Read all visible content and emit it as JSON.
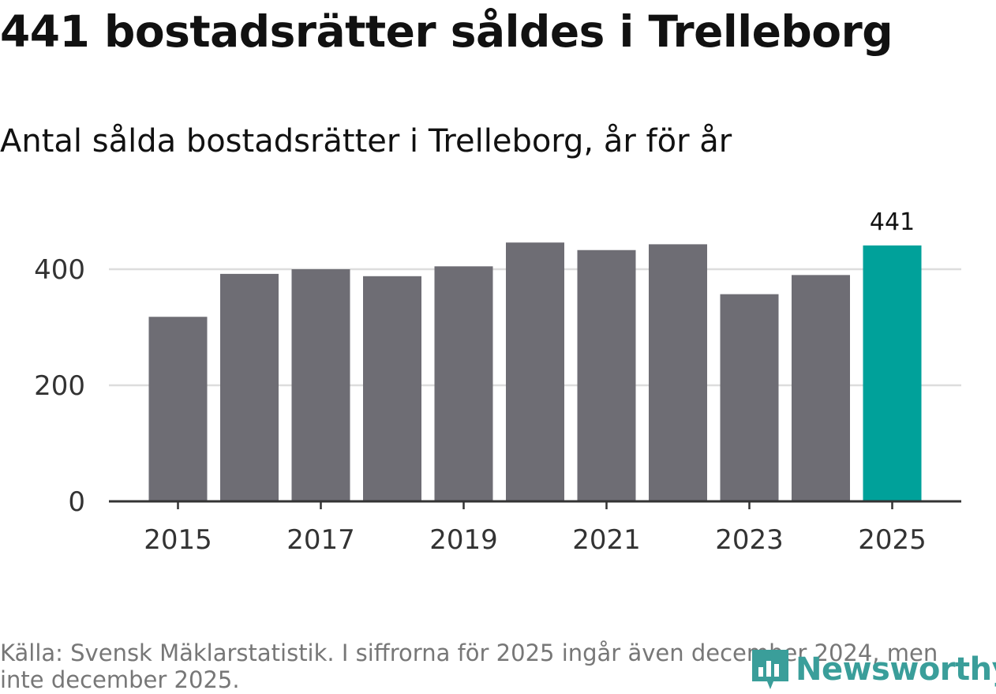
{
  "header": {
    "title": "441 bostadsrätter såldes i Trelleborg",
    "subtitle": "Antal sålda bostadsrätter i Trelleborg, år för år"
  },
  "footer": {
    "source": "Källa: Svensk Mäklarstatistik. I siffrorna för 2025 ingår även december 2024, men inte december 2025.",
    "brand": "Newsworthy",
    "brand_icon": "bar-chart-logo-icon"
  },
  "colors": {
    "bar": "#6e6d74",
    "highlight": "#00a19a",
    "grid": "#dddddd",
    "axis": "#333333",
    "text": "#333333"
  },
  "chart_data": {
    "type": "bar",
    "title": "Antal sålda bostadsrätter i Trelleborg, år för år",
    "xlabel": "",
    "ylabel": "",
    "categories": [
      "2015",
      "2016",
      "2017",
      "2018",
      "2019",
      "2020",
      "2021",
      "2022",
      "2023",
      "2024",
      "2025"
    ],
    "values": [
      318,
      392,
      400,
      388,
      405,
      446,
      433,
      443,
      357,
      390,
      441
    ],
    "x_tick_labels": [
      "2015",
      "2017",
      "2019",
      "2021",
      "2023",
      "2025"
    ],
    "y_ticks": [
      0,
      200,
      400
    ],
    "ylim": [
      0,
      441
    ],
    "grid": true,
    "highlight_category": "2025",
    "data_labels": [
      {
        "category": "2025",
        "text": "441"
      }
    ]
  }
}
